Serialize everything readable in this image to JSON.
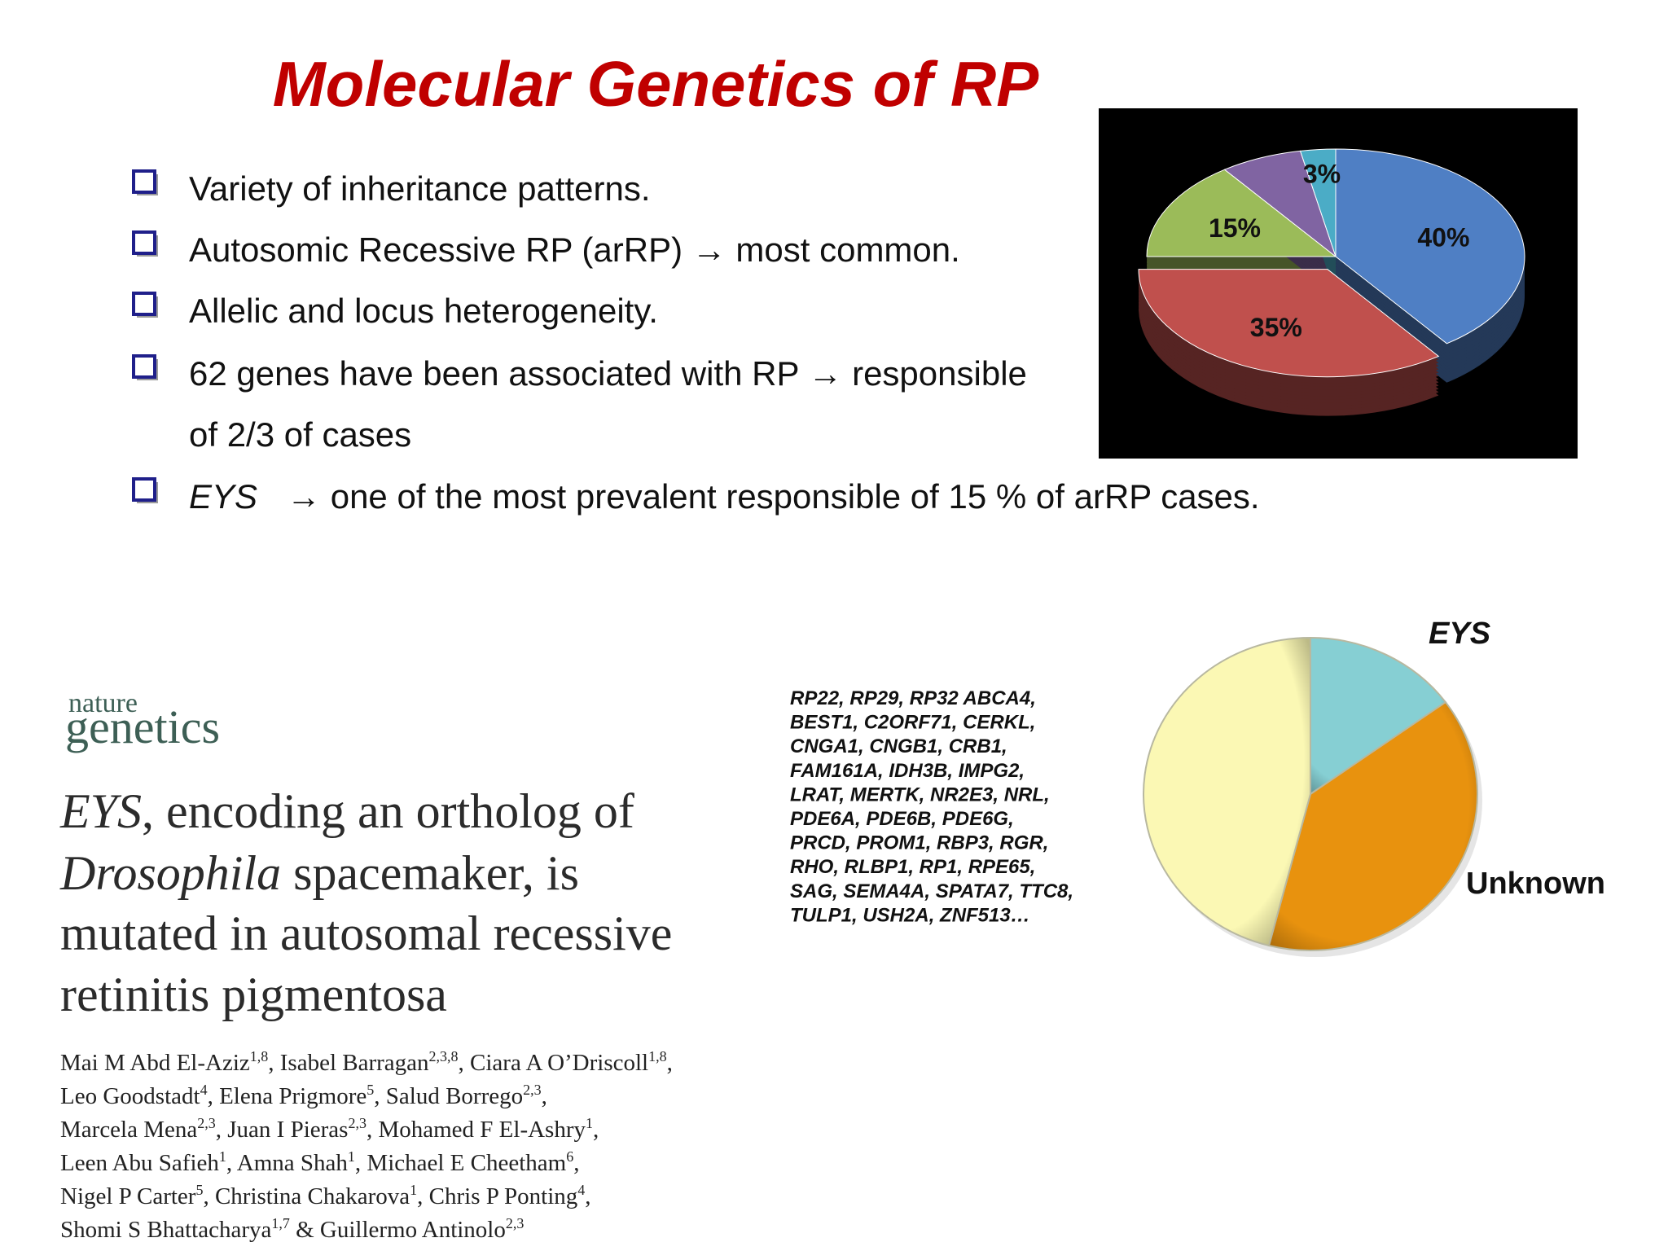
{
  "title": "Molecular Genetics of RP",
  "bullets": [
    {
      "text": "Variety of inheritance patterns."
    },
    {
      "text": "Autosomic Recessive RP (arRP) → most common."
    },
    {
      "text": "Allelic and locus heterogeneity."
    },
    {
      "text": "62 genes have been associated with RP → responsible",
      "continuation": "of 2/3 of cases"
    },
    {
      "italic": "EYS",
      "text": "→ one of the most prevalent responsible of 15 % of arRP cases."
    }
  ],
  "chart_data": [
    {
      "type": "pie",
      "values": [
        40,
        35,
        15,
        7,
        3
      ],
      "value_labels": [
        "40%",
        "35%",
        "15%",
        null,
        "3%"
      ],
      "colors": [
        "#4f7fc4",
        "#c0504d",
        "#9bbb59",
        "#8064a2",
        "#4bacc6"
      ]
    },
    {
      "type": "pie",
      "categories": [
        "EYS",
        "Unknown",
        null
      ],
      "values": [
        15,
        39,
        46
      ],
      "colors": [
        "#86cfd3",
        "#e8920e",
        "#fbf8b4"
      ]
    }
  ],
  "gene_list": [
    "RP22, RP29, RP32  ABCA4,",
    "BEST1, C2ORF71, CERKL,",
    "CNGA1, CNGB1, CRB1,",
    "FAM161A, IDH3B, IMPG2,",
    "LRAT, MERTK, NR2E3, NRL,",
    "PDE6A, PDE6B, PDE6G,",
    "PRCD, PROM1, RBP3, RGR,",
    "RHO, RLBP1, RP1, RPE65,",
    "SAG, SEMA4A, SPATA7, TTC8,",
    "TULP1, USH2A, ZNF513…"
  ],
  "paper": {
    "journal": [
      "nature",
      "genetics"
    ],
    "title_lines": [
      {
        "italic": "EYS",
        "text": ", encoding an ortholog of"
      },
      {
        "italic": "Drosophila",
        "text": " spacemaker, is"
      },
      {
        "text": "mutated in autosomal recessive"
      },
      {
        "text": "retinitis pigmentosa"
      }
    ],
    "authors": [
      [
        "Mai M Abd El-Aziz",
        "1,8",
        ", Isabel Barragan",
        "2,3,8",
        ", Ciara A O’Driscoll",
        "1,8",
        ","
      ],
      [
        "Leo Goodstadt",
        "4",
        ", Elena Prigmore",
        "5",
        ", Salud Borrego",
        "2,3",
        ","
      ],
      [
        "Marcela Mena",
        "2,3",
        ", Juan I Pieras",
        "2,3",
        ", Mohamed F El-Ashry",
        "1",
        ","
      ],
      [
        "Leen Abu Safieh",
        "1",
        ", Amna Shah",
        "1",
        ", Michael E Cheetham",
        "6",
        ","
      ],
      [
        "Nigel P Carter",
        "5",
        ", Christina Chakarova",
        "1",
        ", Chris P Ponting",
        "4",
        ","
      ],
      [
        "Shomi S Bhattacharya",
        "1,7",
        " & Guillermo Antinolo",
        "2,3"
      ]
    ]
  }
}
